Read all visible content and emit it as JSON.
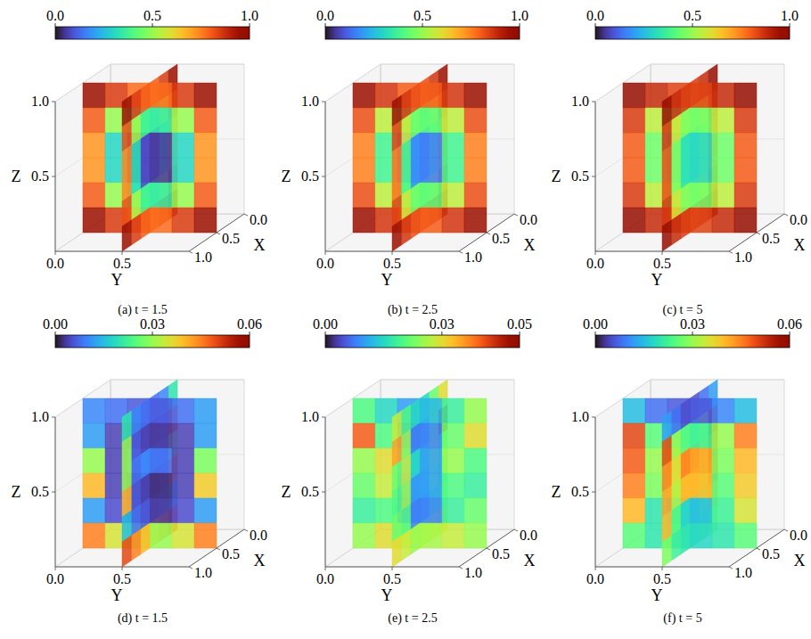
{
  "chart_data": [
    {
      "type": "heatmap3d",
      "caption": "(a) t = 1.5",
      "xlabel": "X",
      "ylabel": "Y",
      "zlabel": "Z",
      "xlim": [
        0,
        1
      ],
      "ylim": [
        0,
        1
      ],
      "zlim": [
        0,
        1
      ],
      "xticks": [
        {
          "value": 0,
          "label": "0.0"
        },
        {
          "value": 0.5,
          "label": "0.5"
        },
        {
          "value": 1,
          "label": "1.0"
        }
      ],
      "yticks": [
        {
          "value": 0,
          "label": "0.0"
        },
        {
          "value": 0.5,
          "label": "0.5"
        }
      ],
      "zticks": [
        {
          "value": 0.5,
          "label": "0.5"
        },
        {
          "value": 1,
          "label": "1.0"
        }
      ],
      "colorbar": {
        "range": [
          0,
          1
        ],
        "ticks": [
          {
            "value": 0,
            "label": "0.0"
          },
          {
            "value": 0.5,
            "label": "0.5"
          },
          {
            "value": 1,
            "label": "1.0"
          }
        ]
      },
      "slices": [
        [
          [
            0.95,
            0.85,
            0.78,
            0.78,
            0.85,
            0.95
          ],
          [
            0.8,
            0.5,
            0.35,
            0.35,
            0.5,
            0.8
          ],
          [
            0.72,
            0.3,
            0.05,
            0.05,
            0.3,
            0.72
          ],
          [
            0.72,
            0.3,
            0.05,
            0.05,
            0.3,
            0.72
          ],
          [
            0.8,
            0.5,
            0.35,
            0.35,
            0.5,
            0.8
          ],
          [
            0.95,
            0.85,
            0.78,
            0.78,
            0.85,
            0.95
          ]
        ],
        [
          [
            0.95,
            0.85,
            0.8,
            0.8,
            0.85,
            0.95
          ],
          [
            0.82,
            0.52,
            0.38,
            0.38,
            0.52,
            0.82
          ],
          [
            0.74,
            0.32,
            0.08,
            0.08,
            0.32,
            0.74
          ],
          [
            0.74,
            0.32,
            0.08,
            0.08,
            0.32,
            0.74
          ],
          [
            0.82,
            0.52,
            0.38,
            0.38,
            0.52,
            0.82
          ],
          [
            0.95,
            0.85,
            0.8,
            0.8,
            0.85,
            0.95
          ]
        ]
      ]
    },
    {
      "type": "heatmap3d",
      "caption": "(b) t = 2.5",
      "xlabel": "X",
      "ylabel": "Y",
      "zlabel": "Z",
      "xlim": [
        0,
        1
      ],
      "ylim": [
        0,
        1
      ],
      "zlim": [
        0,
        1
      ],
      "xticks": [
        {
          "value": 0,
          "label": "0.0"
        },
        {
          "value": 0.5,
          "label": "0.5"
        },
        {
          "value": 1,
          "label": "1.0"
        }
      ],
      "yticks": [
        {
          "value": 0,
          "label": "0.0"
        },
        {
          "value": 0.5,
          "label": "0.5"
        }
      ],
      "zticks": [
        {
          "value": 0.5,
          "label": "0.5"
        },
        {
          "value": 1,
          "label": "1.0"
        }
      ],
      "colorbar": {
        "range": [
          0,
          1
        ],
        "ticks": [
          {
            "value": 0,
            "label": "0.0"
          },
          {
            "value": 0.5,
            "label": "0.5"
          },
          {
            "value": 1,
            "label": "1.0"
          }
        ]
      },
      "slices": [
        [
          [
            0.95,
            0.86,
            0.8,
            0.8,
            0.86,
            0.95
          ],
          [
            0.82,
            0.55,
            0.42,
            0.42,
            0.55,
            0.82
          ],
          [
            0.75,
            0.38,
            0.15,
            0.15,
            0.38,
            0.75
          ],
          [
            0.75,
            0.38,
            0.15,
            0.15,
            0.38,
            0.75
          ],
          [
            0.82,
            0.55,
            0.42,
            0.42,
            0.55,
            0.82
          ],
          [
            0.95,
            0.86,
            0.8,
            0.8,
            0.86,
            0.95
          ]
        ],
        [
          [
            0.95,
            0.86,
            0.82,
            0.82,
            0.86,
            0.95
          ],
          [
            0.84,
            0.57,
            0.45,
            0.45,
            0.57,
            0.84
          ],
          [
            0.77,
            0.4,
            0.18,
            0.18,
            0.4,
            0.77
          ],
          [
            0.77,
            0.4,
            0.18,
            0.18,
            0.4,
            0.77
          ],
          [
            0.84,
            0.57,
            0.45,
            0.45,
            0.57,
            0.84
          ],
          [
            0.95,
            0.86,
            0.82,
            0.82,
            0.86,
            0.95
          ]
        ]
      ]
    },
    {
      "type": "heatmap3d",
      "caption": "(c) t = 5",
      "xlabel": "X",
      "ylabel": "Y",
      "zlabel": "Z",
      "xlim": [
        0,
        1
      ],
      "ylim": [
        0,
        1
      ],
      "zlim": [
        0,
        1
      ],
      "xticks": [
        {
          "value": 0,
          "label": "0.0"
        },
        {
          "value": 0.5,
          "label": "0.5"
        },
        {
          "value": 1,
          "label": "1.0"
        }
      ],
      "yticks": [
        {
          "value": 0,
          "label": "0.0"
        },
        {
          "value": 0.5,
          "label": "0.5"
        }
      ],
      "zticks": [
        {
          "value": 0.5,
          "label": "0.5"
        },
        {
          "value": 1,
          "label": "1.0"
        }
      ],
      "colorbar": {
        "range": [
          0,
          1
        ],
        "ticks": [
          {
            "value": 0,
            "label": "0.0"
          },
          {
            "value": 0.5,
            "label": "0.5"
          },
          {
            "value": 1,
            "label": "1.0"
          }
        ]
      },
      "slices": [
        [
          [
            0.96,
            0.88,
            0.84,
            0.84,
            0.88,
            0.96
          ],
          [
            0.85,
            0.55,
            0.45,
            0.45,
            0.55,
            0.85
          ],
          [
            0.8,
            0.45,
            0.3,
            0.3,
            0.45,
            0.8
          ],
          [
            0.8,
            0.45,
            0.3,
            0.3,
            0.45,
            0.8
          ],
          [
            0.85,
            0.55,
            0.45,
            0.45,
            0.55,
            0.85
          ],
          [
            0.96,
            0.88,
            0.84,
            0.84,
            0.88,
            0.96
          ]
        ],
        [
          [
            0.96,
            0.88,
            0.85,
            0.85,
            0.88,
            0.96
          ],
          [
            0.86,
            0.58,
            0.48,
            0.48,
            0.58,
            0.86
          ],
          [
            0.82,
            0.48,
            0.33,
            0.33,
            0.48,
            0.82
          ],
          [
            0.82,
            0.48,
            0.33,
            0.33,
            0.48,
            0.82
          ],
          [
            0.86,
            0.58,
            0.48,
            0.48,
            0.58,
            0.86
          ],
          [
            0.96,
            0.88,
            0.85,
            0.85,
            0.88,
            0.96
          ]
        ]
      ]
    },
    {
      "type": "heatmap3d",
      "caption": "(d) t = 1.5",
      "xlabel": "X",
      "ylabel": "Y",
      "zlabel": "Z",
      "xlim": [
        0,
        1
      ],
      "ylim": [
        0,
        1
      ],
      "zlim": [
        0,
        1
      ],
      "xticks": [
        {
          "value": 0,
          "label": "0.0"
        },
        {
          "value": 0.5,
          "label": "0.5"
        },
        {
          "value": 1,
          "label": "1.0"
        }
      ],
      "yticks": [
        {
          "value": 0,
          "label": "0.0"
        },
        {
          "value": 0.5,
          "label": "0.5"
        }
      ],
      "zticks": [
        {
          "value": 0.5,
          "label": "0.5"
        },
        {
          "value": 1,
          "label": "1.0"
        }
      ],
      "colorbar": {
        "range": [
          0,
          0.06
        ],
        "ticks": [
          {
            "value": 0,
            "label": "0.00"
          },
          {
            "value": 0.03,
            "label": "0.03"
          },
          {
            "value": 0.06,
            "label": "0.06"
          }
        ]
      },
      "slices": [
        [
          [
            0.01,
            0.008,
            0.006,
            0.006,
            0.008,
            0.012
          ],
          [
            0.012,
            0.004,
            0.003,
            0.003,
            0.004,
            0.012
          ],
          [
            0.03,
            0.004,
            0.008,
            0.008,
            0.004,
            0.028
          ],
          [
            0.04,
            0.004,
            0.002,
            0.002,
            0.004,
            0.038
          ],
          [
            0.012,
            0.005,
            0.003,
            0.003,
            0.005,
            0.012
          ],
          [
            0.045,
            0.035,
            0.03,
            0.03,
            0.035,
            0.045
          ]
        ],
        [
          [
            0.02,
            0.01,
            0.008,
            0.008,
            0.01,
            0.02
          ],
          [
            0.05,
            0.006,
            0.004,
            0.004,
            0.006,
            0.03
          ],
          [
            0.03,
            0.008,
            0.01,
            0.01,
            0.008,
            0.03
          ],
          [
            0.045,
            0.006,
            0.004,
            0.004,
            0.006,
            0.04
          ],
          [
            0.015,
            0.008,
            0.006,
            0.006,
            0.008,
            0.015
          ],
          [
            0.05,
            0.045,
            0.04,
            0.04,
            0.045,
            0.05
          ]
        ]
      ]
    },
    {
      "type": "heatmap3d",
      "caption": "(e) t = 2.5",
      "xlabel": "X",
      "ylabel": "Y",
      "zlabel": "Z",
      "xlim": [
        0,
        1
      ],
      "ylim": [
        0,
        1
      ],
      "zlim": [
        0,
        1
      ],
      "xticks": [
        {
          "value": 0,
          "label": "0.0"
        },
        {
          "value": 0.5,
          "label": "0.5"
        },
        {
          "value": 1,
          "label": "1.0"
        }
      ],
      "yticks": [
        {
          "value": 0,
          "label": "0.0"
        },
        {
          "value": 0.5,
          "label": "0.5"
        }
      ],
      "zticks": [
        {
          "value": 0.5,
          "label": "0.5"
        },
        {
          "value": 1,
          "label": "1.0"
        }
      ],
      "colorbar": {
        "range": [
          0,
          0.05
        ],
        "ticks": [
          {
            "value": 0,
            "label": "0.00"
          },
          {
            "value": 0.03,
            "label": "0.03"
          },
          {
            "value": 0.05,
            "label": "0.05"
          }
        ]
      },
      "slices": [
        [
          [
            0.02,
            0.015,
            0.01,
            0.012,
            0.018,
            0.025
          ],
          [
            0.04,
            0.02,
            0.005,
            0.008,
            0.022,
            0.03
          ],
          [
            0.025,
            0.03,
            0.012,
            0.01,
            0.025,
            0.02
          ],
          [
            0.022,
            0.028,
            0.008,
            0.01,
            0.02,
            0.018
          ],
          [
            0.018,
            0.02,
            0.006,
            0.008,
            0.018,
            0.022
          ],
          [
            0.025,
            0.03,
            0.028,
            0.026,
            0.028,
            0.025
          ]
        ],
        [
          [
            0.03,
            0.022,
            0.015,
            0.015,
            0.02,
            0.028
          ],
          [
            0.045,
            0.025,
            0.008,
            0.008,
            0.025,
            0.035
          ],
          [
            0.02,
            0.028,
            0.015,
            0.015,
            0.028,
            0.022
          ],
          [
            0.018,
            0.025,
            0.01,
            0.01,
            0.025,
            0.02
          ],
          [
            0.022,
            0.02,
            0.008,
            0.008,
            0.02,
            0.022
          ],
          [
            0.03,
            0.028,
            0.025,
            0.025,
            0.028,
            0.03
          ]
        ]
      ]
    },
    {
      "type": "heatmap3d",
      "caption": "(f) t = 5",
      "xlabel": "X",
      "ylabel": "Y",
      "zlabel": "Z",
      "xlim": [
        0,
        1
      ],
      "ylim": [
        0,
        1
      ],
      "zlim": [
        0,
        1
      ],
      "xticks": [
        {
          "value": 0,
          "label": "0.0"
        },
        {
          "value": 0.5,
          "label": "0.5"
        },
        {
          "value": 1,
          "label": "1.0"
        }
      ],
      "yticks": [
        {
          "value": 0,
          "label": "0.0"
        },
        {
          "value": 0.5,
          "label": "0.5"
        }
      ],
      "zticks": [
        {
          "value": 0.5,
          "label": "0.5"
        },
        {
          "value": 1,
          "label": "1.0"
        }
      ],
      "colorbar": {
        "range": [
          0,
          0.06
        ],
        "ticks": [
          {
            "value": 0,
            "label": "0.00"
          },
          {
            "value": 0.03,
            "label": "0.03"
          },
          {
            "value": 0.06,
            "label": "0.06"
          }
        ]
      },
      "slices": [
        [
          [
            0.015,
            0.008,
            0.006,
            0.006,
            0.01,
            0.015
          ],
          [
            0.05,
            0.025,
            0.02,
            0.022,
            0.03,
            0.045
          ],
          [
            0.048,
            0.03,
            0.04,
            0.042,
            0.028,
            0.04
          ],
          [
            0.045,
            0.028,
            0.038,
            0.04,
            0.025,
            0.038
          ],
          [
            0.04,
            0.02,
            0.015,
            0.015,
            0.022,
            0.035
          ],
          [
            0.025,
            0.02,
            0.018,
            0.018,
            0.02,
            0.025
          ]
        ],
        [
          [
            0.012,
            0.008,
            0.005,
            0.005,
            0.008,
            0.012
          ],
          [
            0.055,
            0.03,
            0.025,
            0.025,
            0.03,
            0.05
          ],
          [
            0.05,
            0.035,
            0.045,
            0.045,
            0.035,
            0.045
          ],
          [
            0.048,
            0.032,
            0.04,
            0.04,
            0.032,
            0.042
          ],
          [
            0.042,
            0.025,
            0.018,
            0.018,
            0.025,
            0.04
          ],
          [
            0.028,
            0.022,
            0.02,
            0.02,
            0.022,
            0.028
          ]
        ]
      ]
    }
  ]
}
